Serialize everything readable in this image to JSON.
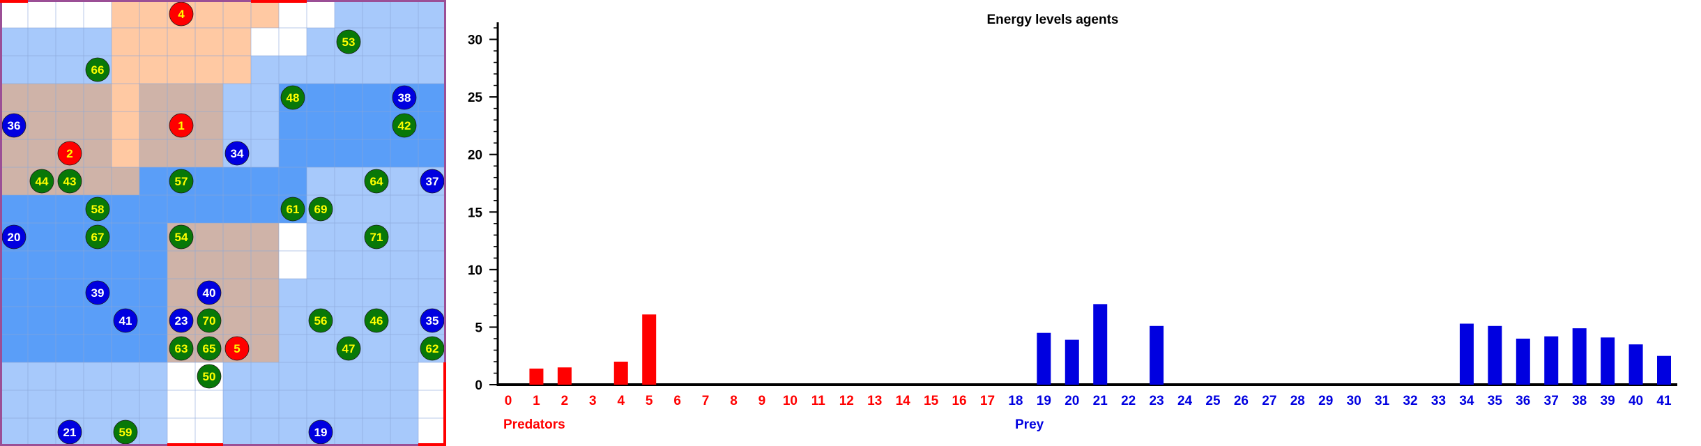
{
  "colors": {
    "predator": "#ff0000",
    "prey": "#0000e0",
    "grass": "#087808",
    "predator_label": "#ffff00",
    "prey_label": "#ffffff",
    "grass_label": "#ffff00",
    "grid_border": "#9b4f96",
    "axis": "#000000"
  },
  "grid": {
    "cols": 16,
    "rows": 16,
    "cell_types": [
      "wwwwoooooowwbbbb",
      "bbbbooooowwbbbbb",
      "bbbbooooobbbbbbb",
      "ttttotttbbmmmmmm",
      "ttttotttbbmmmmmm",
      "ttttotttbbmmmmmm",
      "tttttmmmmmmbbbbb",
      "mmmmmmmmmmmbbbbb",
      "mmmmmmttttwbbbbb",
      "mmmmmmttttwbbbbb",
      "mmmmmmttttbbbbbb",
      "mmmmmmttttbbbbbb",
      "mmmmmmttttbbbbbb",
      "bbbbbbwwbbbbbbbw",
      "bbbbbbwwbbbbbbbw",
      "bbbbbbwwbbbbbbbw"
    ],
    "cell_colors": {
      "w": "#ffffff",
      "o": "#ffc9a3",
      "t": "#cfb3a8",
      "b": "#a7c9fb",
      "m": "#5a9ef8"
    },
    "agents": [
      {
        "label": "4",
        "kind": "predator",
        "col": 6.5,
        "row": 0.5
      },
      {
        "label": "53",
        "kind": "grass",
        "col": 12.5,
        "row": 1.5
      },
      {
        "label": "66",
        "kind": "grass",
        "col": 3.5,
        "row": 2.5
      },
      {
        "label": "48",
        "kind": "grass",
        "col": 10.5,
        "row": 3.5
      },
      {
        "label": "38",
        "kind": "prey",
        "col": 14.5,
        "row": 3.5
      },
      {
        "label": "36",
        "kind": "prey",
        "col": 0.5,
        "row": 4.5
      },
      {
        "label": "1",
        "kind": "predator",
        "col": 6.5,
        "row": 4.5
      },
      {
        "label": "42",
        "kind": "grass",
        "col": 14.5,
        "row": 4.5
      },
      {
        "label": "2",
        "kind": "predator",
        "col": 2.5,
        "row": 5.5
      },
      {
        "label": "34",
        "kind": "prey",
        "col": 8.5,
        "row": 5.5
      },
      {
        "label": "44",
        "kind": "grass",
        "col": 1.5,
        "row": 6.5
      },
      {
        "label": "43",
        "kind": "grass",
        "col": 2.5,
        "row": 6.5
      },
      {
        "label": "57",
        "kind": "grass",
        "col": 6.5,
        "row": 6.5
      },
      {
        "label": "64",
        "kind": "grass",
        "col": 13.5,
        "row": 6.5
      },
      {
        "label": "37",
        "kind": "prey",
        "col": 15.5,
        "row": 6.5
      },
      {
        "label": "58",
        "kind": "grass",
        "col": 3.5,
        "row": 7.5
      },
      {
        "label": "61",
        "kind": "grass",
        "col": 10.5,
        "row": 7.5
      },
      {
        "label": "69",
        "kind": "grass",
        "col": 11.5,
        "row": 7.5
      },
      {
        "label": "20",
        "kind": "prey",
        "col": 0.5,
        "row": 8.5
      },
      {
        "label": "67",
        "kind": "grass",
        "col": 3.5,
        "row": 8.5
      },
      {
        "label": "54",
        "kind": "grass",
        "col": 6.5,
        "row": 8.5
      },
      {
        "label": "71",
        "kind": "grass",
        "col": 13.5,
        "row": 8.5
      },
      {
        "label": "39",
        "kind": "prey",
        "col": 3.5,
        "row": 10.5
      },
      {
        "label": "40",
        "kind": "prey",
        "col": 7.5,
        "row": 10.5
      },
      {
        "label": "41",
        "kind": "prey",
        "col": 4.5,
        "row": 11.5
      },
      {
        "label": "23",
        "kind": "prey",
        "col": 6.5,
        "row": 11.5
      },
      {
        "label": "70",
        "kind": "grass",
        "col": 7.5,
        "row": 11.5
      },
      {
        "label": "56",
        "kind": "grass",
        "col": 11.5,
        "row": 11.5
      },
      {
        "label": "46",
        "kind": "grass",
        "col": 13.5,
        "row": 11.5
      },
      {
        "label": "35",
        "kind": "prey",
        "col": 15.5,
        "row": 11.5
      },
      {
        "label": "63",
        "kind": "grass",
        "col": 6.5,
        "row": 12.5
      },
      {
        "label": "65",
        "kind": "grass",
        "col": 7.5,
        "row": 12.5
      },
      {
        "label": "5",
        "kind": "predator",
        "col": 8.5,
        "row": 12.5
      },
      {
        "label": "47",
        "kind": "grass",
        "col": 12.5,
        "row": 12.5
      },
      {
        "label": "62",
        "kind": "grass",
        "col": 15.5,
        "row": 12.5
      },
      {
        "label": "50",
        "kind": "grass",
        "col": 7.5,
        "row": 13.5
      },
      {
        "label": "21",
        "kind": "prey",
        "col": 2.5,
        "row": 15.5
      },
      {
        "label": "59",
        "kind": "grass",
        "col": 4.5,
        "row": 15.5
      },
      {
        "label": "19",
        "kind": "prey",
        "col": 11.5,
        "row": 15.5
      }
    ]
  },
  "chart_data": {
    "type": "bar",
    "title": "Energy levels agents",
    "ylim": [
      0,
      31
    ],
    "yticks": [
      0,
      5,
      10,
      15,
      20,
      25,
      30
    ],
    "categories": [
      "0",
      "1",
      "2",
      "3",
      "4",
      "5",
      "6",
      "7",
      "8",
      "9",
      "10",
      "11",
      "12",
      "13",
      "14",
      "15",
      "16",
      "17",
      "18",
      "19",
      "20",
      "21",
      "22",
      "23",
      "24",
      "25",
      "26",
      "27",
      "28",
      "29",
      "30",
      "31",
      "32",
      "33",
      "34",
      "35",
      "36",
      "37",
      "38",
      "39",
      "40",
      "41"
    ],
    "category_groups": [
      "predator",
      "predator",
      "predator",
      "predator",
      "predator",
      "predator",
      "predator",
      "predator",
      "predator",
      "predator",
      "predator",
      "predator",
      "predator",
      "predator",
      "predator",
      "predator",
      "predator",
      "predator",
      "prey",
      "prey",
      "prey",
      "prey",
      "prey",
      "prey",
      "prey",
      "prey",
      "prey",
      "prey",
      "prey",
      "prey",
      "prey",
      "prey",
      "prey",
      "prey",
      "prey",
      "prey",
      "prey",
      "prey",
      "prey",
      "prey",
      "prey",
      "prey"
    ],
    "values": [
      0,
      1.4,
      1.5,
      0,
      2.0,
      6.1,
      0,
      0,
      0,
      0,
      0,
      0,
      0,
      0,
      0,
      0,
      0,
      0,
      0,
      4.5,
      3.9,
      7.0,
      0,
      5.1,
      0,
      0,
      0,
      0,
      0,
      0,
      0,
      0,
      0,
      0,
      5.3,
      5.1,
      4.0,
      4.2,
      4.9,
      4.1,
      3.5,
      2.5
    ],
    "group_labels": {
      "predator": "Predators",
      "prey": "Prey"
    }
  }
}
